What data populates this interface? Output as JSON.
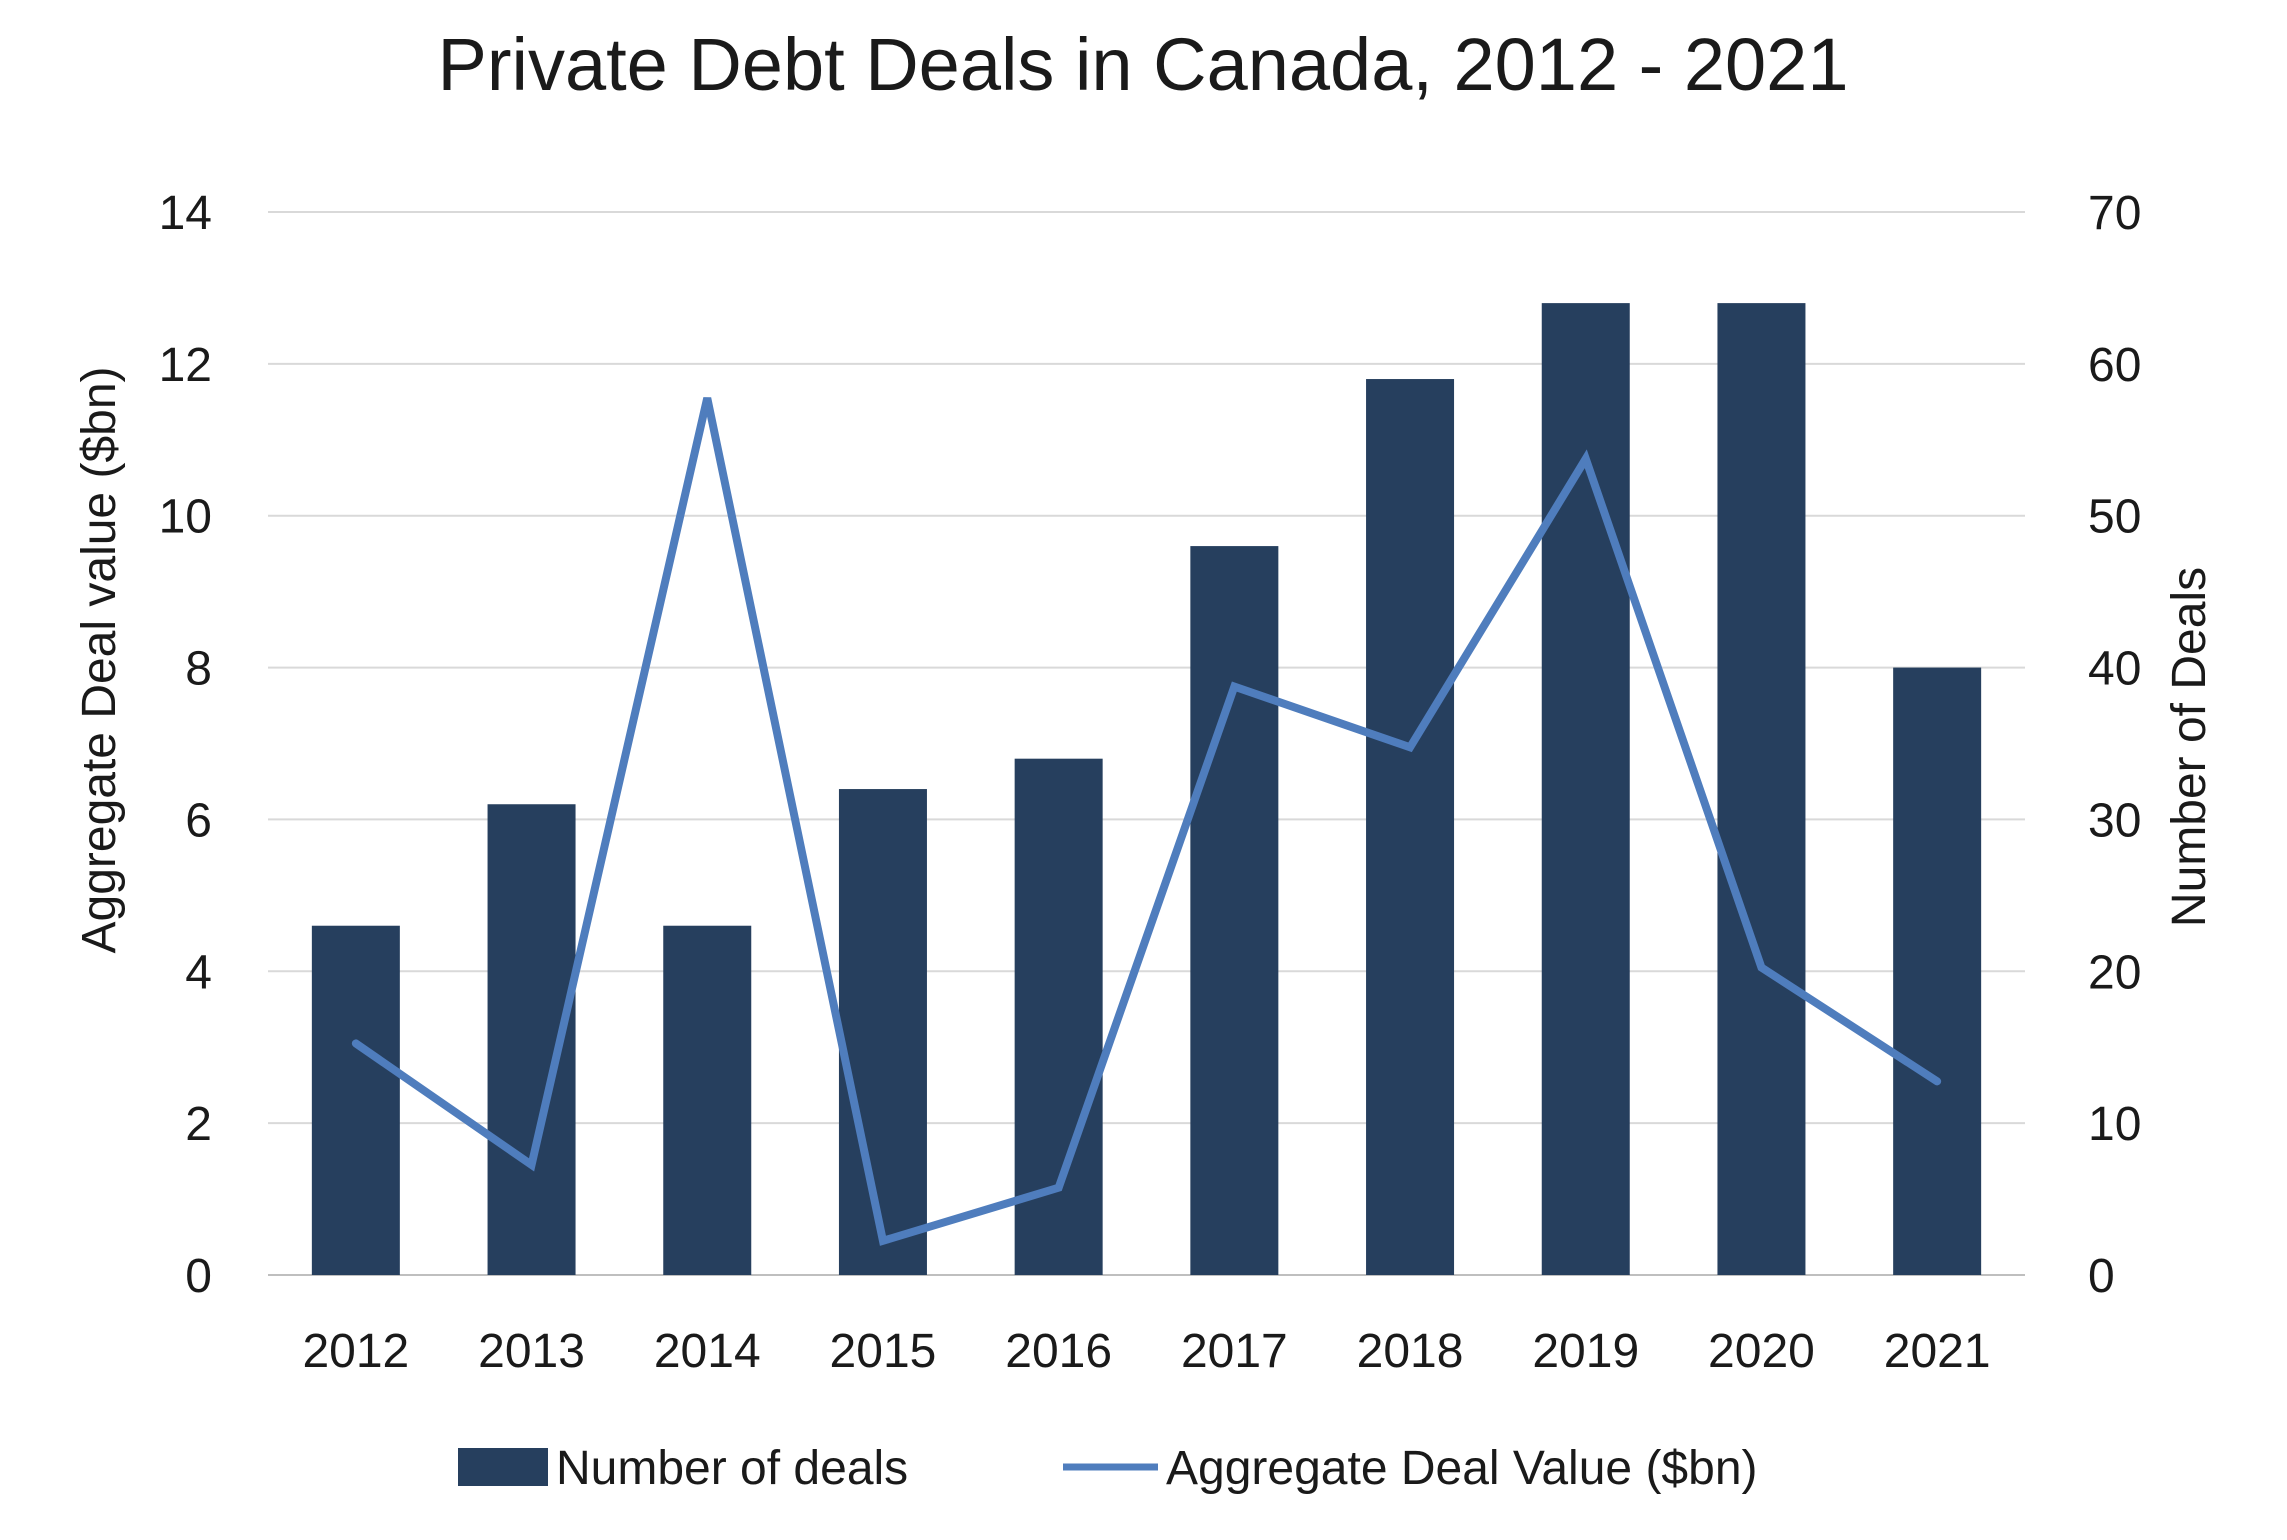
{
  "chart_data": {
    "type": "bar",
    "title": "Private Debt Deals in Canada, 2012 - 2021",
    "categories": [
      "2012",
      "2013",
      "2014",
      "2015",
      "2016",
      "2017",
      "2018",
      "2019",
      "2020",
      "2021"
    ],
    "series": [
      {
        "name": "Number of deals",
        "type": "bar",
        "axis": "right",
        "color": "#263f5e",
        "values": [
          23,
          31,
          23,
          32,
          34,
          48,
          59,
          64,
          64,
          40
        ]
      },
      {
        "name": "Aggregate Deal Value ($bn)",
        "type": "line",
        "axis": "left",
        "color": "#4f7dbd",
        "values": [
          3.05,
          1.45,
          11.55,
          0.45,
          1.15,
          7.75,
          6.95,
          10.75,
          4.05,
          2.55
        ]
      }
    ],
    "y_left": {
      "label": "Aggregate Deal value ($bn)",
      "range": [
        0,
        14
      ],
      "ticks": [
        "0",
        "2",
        "4",
        "6",
        "8",
        "10",
        "12",
        "14"
      ]
    },
    "y_right": {
      "label": "Number of Deals",
      "range": [
        0,
        70
      ],
      "ticks": [
        "0",
        "10",
        "20",
        "30",
        "40",
        "50",
        "60",
        "70"
      ]
    },
    "grid": true,
    "legend_position": "bottom"
  }
}
